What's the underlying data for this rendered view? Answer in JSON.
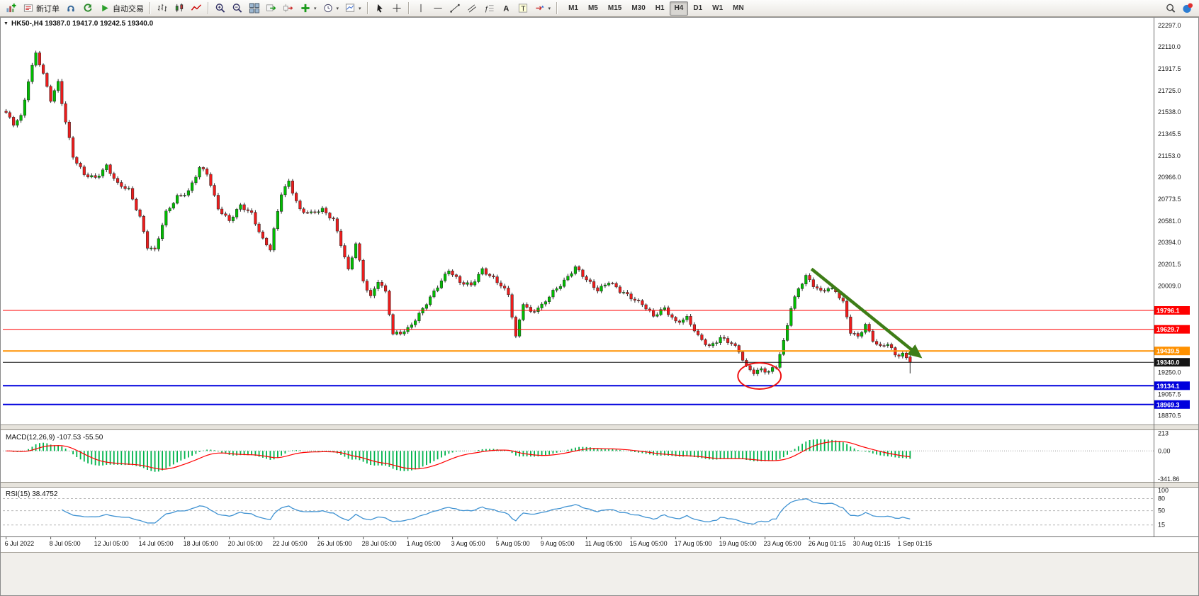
{
  "toolbar": {
    "buttons": [
      {
        "type": "button",
        "name": "new-chart-button",
        "icon": "chart-plus"
      },
      {
        "type": "button",
        "name": "new-order-button",
        "icon": "order-ticket",
        "label": "新订单"
      },
      {
        "type": "button",
        "name": "metaeditor-button",
        "icon": "headset"
      },
      {
        "type": "button",
        "name": "refresh-button",
        "icon": "refresh"
      },
      {
        "type": "button",
        "name": "auto-trading-button",
        "icon": "play",
        "label": "自动交易"
      },
      {
        "type": "sep"
      },
      {
        "type": "button",
        "name": "bars-chart-button",
        "icon": "bars"
      },
      {
        "type": "button",
        "name": "candlestick-chart-button",
        "icon": "candles"
      },
      {
        "type": "button",
        "name": "line-chart-button",
        "icon": "linechart"
      },
      {
        "type": "sep"
      },
      {
        "type": "button",
        "name": "zoom-in-button",
        "icon": "zoom-in"
      },
      {
        "type": "button",
        "name": "zoom-out-button",
        "icon": "zoom-out"
      },
      {
        "type": "button",
        "name": "tile-windows-button",
        "icon": "tile"
      },
      {
        "type": "button",
        "name": "auto-scroll-button",
        "icon": "autoscroll"
      },
      {
        "type": "button",
        "name": "chart-shift-button",
        "icon": "chartshift"
      },
      {
        "type": "button",
        "name": "indicators-button",
        "icon": "plus-green",
        "caret": true
      },
      {
        "type": "button",
        "name": "periods-button",
        "icon": "clock",
        "caret": true
      },
      {
        "type": "button",
        "name": "templates-button",
        "icon": "template",
        "caret": true
      },
      {
        "type": "sep"
      },
      {
        "type": "button",
        "name": "cursor-button",
        "icon": "cursor"
      },
      {
        "type": "button",
        "name": "crosshair-button",
        "icon": "crosshair"
      },
      {
        "type": "sep"
      },
      {
        "type": "button",
        "name": "vertical-line-button",
        "icon": "vline"
      },
      {
        "type": "button",
        "name": "horizontal-line-button",
        "icon": "hline"
      },
      {
        "type": "button",
        "name": "trendline-button",
        "icon": "trendline"
      },
      {
        "type": "button",
        "name": "channel-button",
        "icon": "channel"
      },
      {
        "type": "button",
        "name": "fibonacci-button",
        "icon": "fibo"
      },
      {
        "type": "button",
        "name": "text-button",
        "icon": "textA"
      },
      {
        "type": "button",
        "name": "text-label-button",
        "icon": "textT"
      },
      {
        "type": "button",
        "name": "arrows-button",
        "icon": "shapes",
        "caret": true
      },
      {
        "type": "sep"
      }
    ],
    "timeframes": [
      "M1",
      "M5",
      "M15",
      "M30",
      "H1",
      "H4",
      "D1",
      "W1",
      "MN"
    ],
    "active_timeframe": "H4",
    "right_buttons": [
      {
        "type": "button",
        "name": "search-button",
        "icon": "search"
      },
      {
        "type": "button",
        "name": "community-button",
        "icon": "community"
      }
    ]
  },
  "colors": {
    "candle_up": "#00bd00",
    "candle_down": "#ee1c1c",
    "wick": "#2b2b2b",
    "macd_histogram": "#00b34d",
    "macd_signal": "#ff0000",
    "rsi_line": "#3f92d2",
    "axis_text": "#1a1a1a"
  },
  "chart_data": {
    "type": "candlestick",
    "symbol": "HK50-",
    "timeframe": "H4",
    "title": "HK50-,H4  19387.0 19417.0 19242.5 19340.0",
    "current_ohlc": {
      "open": 19387.0,
      "high": 19417.0,
      "low": 19242.5,
      "close": 19340.0
    },
    "n_candles": 244,
    "label_every": 12,
    "y_range": [
      18800,
      22360
    ],
    "y_ticks": [
      "22297.0",
      "22110.0",
      "21917.5",
      "21725.0",
      "21538.0",
      "21345.5",
      "21153.0",
      "20966.0",
      "20773.5",
      "20581.0",
      "20394.0",
      "20201.5",
      "20009.0",
      "19250.0",
      "19057.5",
      "18870.5"
    ],
    "x_labels": [
      "6 Jul 2022",
      "8 Jul 05:00",
      "12 Jul 05:00",
      "14 Jul 05:00",
      "18 Jul 05:00",
      "20 Jul 05:00",
      "22 Jul 05:00",
      "26 Jul 05:00",
      "28 Jul 05:00",
      "1 Aug 05:00",
      "3 Aug 05:00",
      "5 Aug 05:00",
      "9 Aug 05:00",
      "11 Aug 05:00",
      "15 Aug 05:00",
      "17 Aug 05:00",
      "19 Aug 05:00",
      "23 Aug 05:00",
      "26 Aug 01:15",
      "30 Aug 01:15",
      "1 Sep 01:15"
    ],
    "levels": [
      {
        "label": "19796.1",
        "price": 19796.1,
        "color": "#ff0000",
        "width": 1,
        "name": "resistance-line-19796"
      },
      {
        "label": "19629.7",
        "price": 19629.7,
        "color": "#ff0000",
        "width": 1,
        "name": "resistance-line-19629"
      },
      {
        "label": "19439.5",
        "price": 19439.5,
        "color": "#ff9100",
        "width": 2,
        "name": "support-line-19439"
      },
      {
        "label": "19340.0",
        "price": 19340.0,
        "color": "#151515",
        "width": 1,
        "name": "current-price-line"
      },
      {
        "label": "19134.1",
        "price": 19134.1,
        "color": "#0000dd",
        "width": 2,
        "name": "support-line-19134"
      },
      {
        "label": "18969.3",
        "price": 18969.3,
        "color": "#0000dd",
        "width": 2,
        "name": "support-line-18969"
      }
    ],
    "price_anchors": [
      [
        0,
        21520
      ],
      [
        2,
        21430
      ],
      [
        4,
        21500
      ],
      [
        6,
        21820
      ],
      [
        8,
        22060
      ],
      [
        10,
        21860
      ],
      [
        12,
        21640
      ],
      [
        14,
        21800
      ],
      [
        16,
        21460
      ],
      [
        18,
        21150
      ],
      [
        21,
        20980
      ],
      [
        24,
        20960
      ],
      [
        27,
        21070
      ],
      [
        30,
        20900
      ],
      [
        33,
        20850
      ],
      [
        36,
        20620
      ],
      [
        38,
        20360
      ],
      [
        40,
        20320
      ],
      [
        43,
        20650
      ],
      [
        46,
        20800
      ],
      [
        49,
        20840
      ],
      [
        52,
        21040
      ],
      [
        54,
        21000
      ],
      [
        57,
        20700
      ],
      [
        60,
        20580
      ],
      [
        63,
        20710
      ],
      [
        66,
        20650
      ],
      [
        69,
        20420
      ],
      [
        71,
        20330
      ],
      [
        74,
        20820
      ],
      [
        76,
        20930
      ],
      [
        79,
        20680
      ],
      [
        82,
        20640
      ],
      [
        85,
        20680
      ],
      [
        88,
        20600
      ],
      [
        90,
        20380
      ],
      [
        92,
        20140
      ],
      [
        94,
        20380
      ],
      [
        96,
        20060
      ],
      [
        98,
        19920
      ],
      [
        100,
        20060
      ],
      [
        102,
        19950
      ],
      [
        104,
        19580
      ],
      [
        106,
        19600
      ],
      [
        108,
        19640
      ],
      [
        111,
        19760
      ],
      [
        114,
        19900
      ],
      [
        117,
        20060
      ],
      [
        119,
        20160
      ],
      [
        122,
        20040
      ],
      [
        125,
        20010
      ],
      [
        128,
        20160
      ],
      [
        131,
        20080
      ],
      [
        133,
        20010
      ],
      [
        135,
        19930
      ],
      [
        137,
        19560
      ],
      [
        139,
        19870
      ],
      [
        141,
        19780
      ],
      [
        144,
        19830
      ],
      [
        147,
        19960
      ],
      [
        150,
        20060
      ],
      [
        153,
        20170
      ],
      [
        156,
        20060
      ],
      [
        159,
        19980
      ],
      [
        162,
        20050
      ],
      [
        165,
        19960
      ],
      [
        168,
        19910
      ],
      [
        171,
        19860
      ],
      [
        174,
        19740
      ],
      [
        177,
        19810
      ],
      [
        180,
        19700
      ],
      [
        183,
        19730
      ],
      [
        186,
        19560
      ],
      [
        189,
        19480
      ],
      [
        192,
        19560
      ],
      [
        195,
        19500
      ],
      [
        197,
        19430
      ],
      [
        199,
        19300
      ],
      [
        201,
        19260
      ],
      [
        203,
        19280
      ],
      [
        205,
        19250
      ],
      [
        207,
        19300
      ],
      [
        209,
        19520
      ],
      [
        211,
        19830
      ],
      [
        213,
        19990
      ],
      [
        215,
        20090
      ],
      [
        217,
        20010
      ],
      [
        219,
        19960
      ],
      [
        221,
        20000
      ],
      [
        223,
        19970
      ],
      [
        225,
        19860
      ],
      [
        227,
        19600
      ],
      [
        229,
        19560
      ],
      [
        231,
        19680
      ],
      [
        233,
        19540
      ],
      [
        235,
        19470
      ],
      [
        237,
        19500
      ],
      [
        239,
        19400
      ],
      [
        241,
        19420
      ],
      [
        243,
        19340
      ]
    ],
    "indicators": {
      "macd": {
        "label": "MACD(12,26,9)",
        "value_text": "-107.53 -55.50",
        "fast": 12,
        "slow": 26,
        "signal": 9,
        "axis_labels": [
          "213",
          "0.00",
          "-341.86"
        ],
        "axis_values": [
          213,
          0,
          -341.86
        ]
      },
      "rsi": {
        "label": "RSI(15)",
        "value_text": "38.4752",
        "period": 15,
        "axis_labels": [
          "100",
          "80",
          "50",
          "15"
        ],
        "axis_values": [
          100,
          80,
          50,
          15
        ],
        "levels": [
          80,
          50,
          15
        ]
      }
    },
    "annotations": {
      "circle": {
        "center_idx": 202.5,
        "center_price": 19220,
        "rx_candles": 5.8,
        "ry_points": 115,
        "color": "#ee1111"
      },
      "arrow": {
        "from_idx": 216.5,
        "from_price": 20160,
        "to_idx": 245.5,
        "to_price": 19395,
        "color": "#3e7d17"
      }
    }
  }
}
